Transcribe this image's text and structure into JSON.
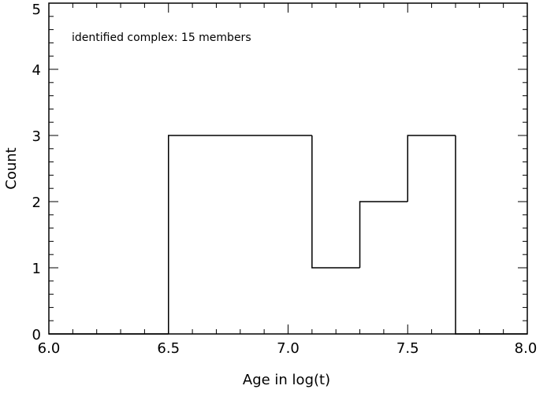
{
  "chart_data": {
    "type": "histogram",
    "title": "",
    "xlabel": "Age in log(t)",
    "ylabel": "Count",
    "annotation": "identified complex: 15 members",
    "xlim": [
      6.0,
      8.0
    ],
    "ylim": [
      0,
      5
    ],
    "xticks": [
      {
        "value": 6.0,
        "label": "6.0"
      },
      {
        "value": 6.5,
        "label": "6.5"
      },
      {
        "value": 7.0,
        "label": "7.0"
      },
      {
        "value": 7.5,
        "label": "7.5"
      },
      {
        "value": 8.0,
        "label": "8.0"
      }
    ],
    "yticks": [
      {
        "value": 0,
        "label": "0"
      },
      {
        "value": 1,
        "label": "1"
      },
      {
        "value": 2,
        "label": "2"
      },
      {
        "value": 3,
        "label": "3"
      },
      {
        "value": 4,
        "label": "4"
      },
      {
        "value": 5,
        "label": "5"
      }
    ],
    "x_minor_step": 0.1,
    "y_minor_step": 0.2,
    "bins": [
      {
        "x_start": 6.0,
        "x_end": 6.5,
        "count": 0
      },
      {
        "x_start": 6.5,
        "x_end": 7.1,
        "count": 3
      },
      {
        "x_start": 7.1,
        "x_end": 7.3,
        "count": 1
      },
      {
        "x_start": 7.3,
        "x_end": 7.5,
        "count": 2
      },
      {
        "x_start": 7.5,
        "x_end": 7.7,
        "count": 3
      },
      {
        "x_start": 7.7,
        "x_end": 8.0,
        "count": 0
      }
    ],
    "grid": false,
    "line_color": "#000000"
  }
}
